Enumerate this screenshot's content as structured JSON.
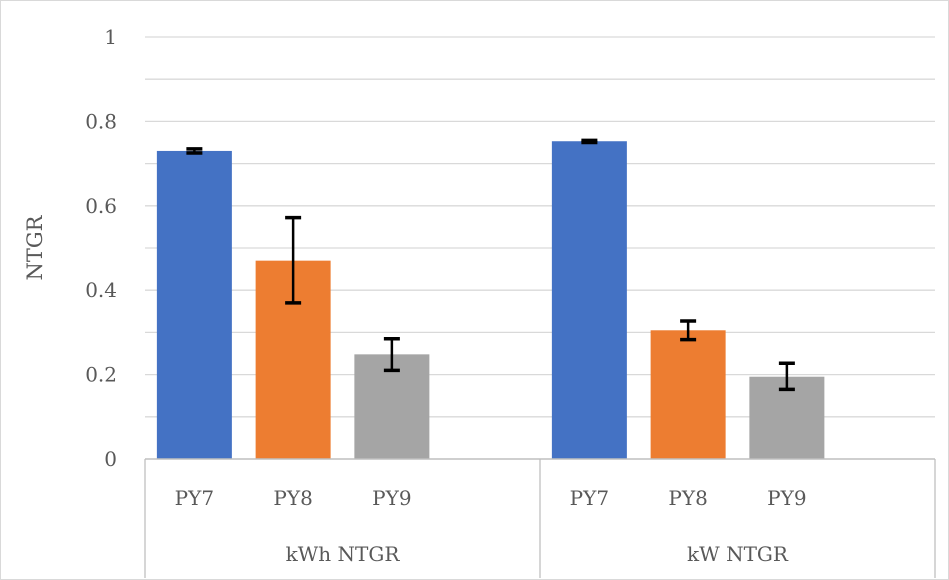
{
  "chart_data": {
    "type": "bar",
    "title": "",
    "ylabel": "NTGR",
    "ylim": [
      0,
      1
    ],
    "y_ticks": [
      "0",
      "0.2",
      "0.4",
      "0.6",
      "0.8",
      "1"
    ],
    "y_tick_values": [
      0,
      0.2,
      0.4,
      0.6,
      0.8,
      1.0
    ],
    "gridlines": true,
    "legend": "none",
    "groups": [
      {
        "label": "kWh NTGR",
        "bars": [
          {
            "category": "PY7",
            "value": 0.73,
            "err_low": 0.725,
            "err_high": 0.735,
            "color": "#4472C4"
          },
          {
            "category": "PY8",
            "value": 0.47,
            "err_low": 0.37,
            "err_high": 0.572,
            "color": "#ED7D31"
          },
          {
            "category": "PY9",
            "value": 0.248,
            "err_low": 0.21,
            "err_high": 0.285,
            "color": "#A5A5A5"
          }
        ]
      },
      {
        "label": "kW NTGR",
        "bars": [
          {
            "category": "PY7",
            "value": 0.753,
            "err_low": 0.75,
            "err_high": 0.755,
            "color": "#4472C4"
          },
          {
            "category": "PY8",
            "value": 0.305,
            "err_low": 0.283,
            "err_high": 0.327,
            "color": "#ED7D31"
          },
          {
            "category": "PY9",
            "value": 0.195,
            "err_low": 0.165,
            "err_high": 0.227,
            "color": "#A5A5A5"
          }
        ]
      }
    ]
  }
}
